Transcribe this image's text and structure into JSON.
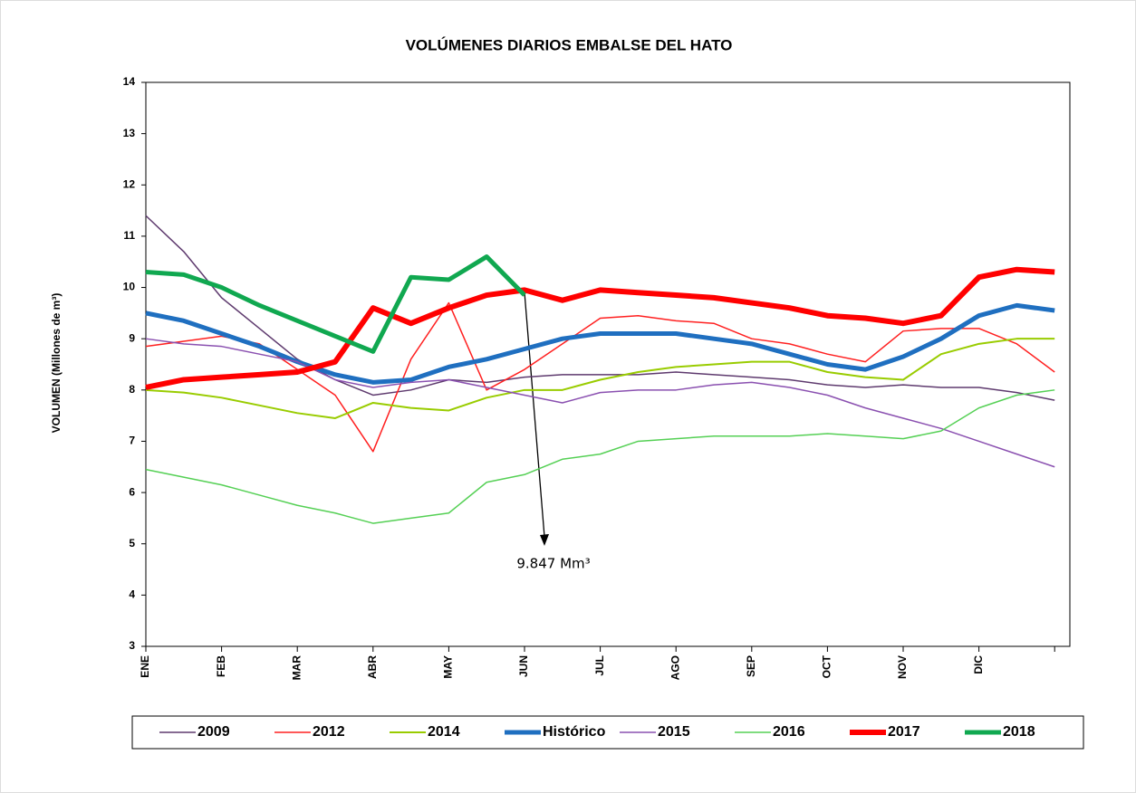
{
  "chart_data": {
    "type": "line",
    "title": "VOLÚMENES DIARIOS EMBALSE DEL HATO",
    "y_label": "VOLUMEN (Millones de m³)",
    "annotation": "9.847 Mm³",
    "categories": [
      "ENE",
      null,
      "FEB",
      null,
      "MAR",
      null,
      "ABR",
      null,
      "MAY",
      null,
      "JUN",
      null,
      "JUL",
      null,
      "AGO",
      null,
      "SEP",
      null,
      "OCT",
      null,
      "NOV",
      null,
      "DIC",
      null,
      null
    ],
    "ylim": [
      3,
      14
    ],
    "yticks": [
      3,
      4,
      5,
      6,
      7,
      8,
      9,
      10,
      11,
      12,
      13,
      14
    ],
    "grid": false,
    "series": [
      {
        "name": "2009",
        "color": "#5e3a6e",
        "width": 1.5,
        "values": [
          11.4,
          10.7,
          9.8,
          9.2,
          8.6,
          8.2,
          7.9,
          8.0,
          8.2,
          8.15,
          8.25,
          8.3,
          8.3,
          8.3,
          8.35,
          8.3,
          8.25,
          8.2,
          8.1,
          8.05,
          8.1,
          8.05,
          8.05,
          7.95,
          7.8
        ]
      },
      {
        "name": "2012",
        "color": "#ff2020",
        "width": 1.5,
        "values": [
          8.85,
          8.95,
          9.05,
          8.9,
          8.4,
          7.9,
          6.8,
          8.6,
          9.7,
          8.0,
          8.4,
          8.9,
          9.4,
          9.45,
          9.35,
          9.3,
          9.0,
          8.9,
          8.7,
          8.55,
          9.15,
          9.2,
          9.2,
          8.9,
          8.35
        ]
      },
      {
        "name": "2014",
        "color": "#99cc00",
        "width": 2,
        "values": [
          8.0,
          7.95,
          7.85,
          7.7,
          7.55,
          7.45,
          7.75,
          7.65,
          7.6,
          7.85,
          8.0,
          8.0,
          8.2,
          8.35,
          8.45,
          8.5,
          8.55,
          8.55,
          8.35,
          8.25,
          8.2,
          8.7,
          8.9,
          9.0,
          9.0
        ]
      },
      {
        "name": "Histórico",
        "color": "#1f6fc0",
        "width": 5,
        "values": [
          9.5,
          9.35,
          9.1,
          8.85,
          8.55,
          8.3,
          8.15,
          8.2,
          8.45,
          8.6,
          8.8,
          9.0,
          9.1,
          9.1,
          9.1,
          9.0,
          8.9,
          8.7,
          8.5,
          8.4,
          8.65,
          9.0,
          9.45,
          9.65,
          9.55
        ]
      },
      {
        "name": "2015",
        "color": "#8a50b0",
        "width": 1.5,
        "values": [
          9.0,
          8.9,
          8.85,
          8.7,
          8.55,
          8.2,
          8.05,
          8.15,
          8.2,
          8.05,
          7.9,
          7.75,
          7.95,
          8.0,
          8.0,
          8.1,
          8.15,
          8.05,
          7.9,
          7.65,
          7.45,
          7.25,
          7.0,
          6.75,
          6.5
        ]
      },
      {
        "name": "2016",
        "color": "#55d055",
        "width": 1.5,
        "values": [
          6.45,
          6.3,
          6.15,
          5.95,
          5.75,
          5.6,
          5.4,
          5.5,
          5.6,
          6.2,
          6.35,
          6.65,
          6.75,
          7.0,
          7.05,
          7.1,
          7.1,
          7.1,
          7.15,
          7.1,
          7.05,
          7.2,
          7.65,
          7.9,
          8.0
        ]
      },
      {
        "name": "2017",
        "color": "#ff0000",
        "width": 6,
        "values": [
          8.05,
          8.2,
          8.25,
          8.3,
          8.35,
          8.55,
          9.6,
          9.3,
          9.6,
          9.85,
          9.95,
          9.75,
          9.95,
          9.9,
          9.85,
          9.8,
          9.7,
          9.6,
          9.45,
          9.4,
          9.3,
          9.45,
          10.2,
          10.35,
          10.3
        ]
      },
      {
        "name": "2018",
        "color": "#10a850",
        "width": 5,
        "values": [
          10.3,
          10.25,
          10.0,
          9.65,
          9.35,
          9.05,
          8.75,
          10.2,
          10.15,
          10.6,
          9.85,
          null,
          null,
          null,
          null,
          null,
          null,
          null,
          null,
          null,
          null,
          null,
          null,
          null,
          null
        ]
      }
    ]
  }
}
